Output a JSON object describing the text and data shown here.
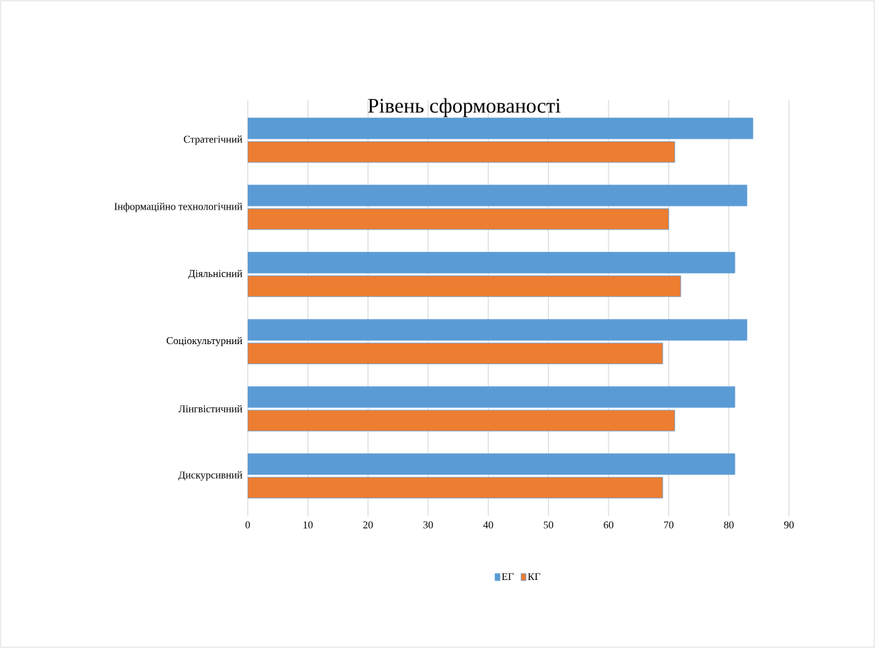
{
  "chart_data": {
    "type": "bar",
    "orientation": "horizontal",
    "title": "Рівень сформованості",
    "categories": [
      "Стратегічний",
      "Інформаційно технологічний",
      "Діяльнісний",
      "Соціокультурний",
      "Лінгвістичний",
      "Дискурсивний"
    ],
    "series": [
      {
        "name": "ЕГ",
        "color": "#5b9bd5",
        "values": [
          84,
          83,
          81,
          83,
          81,
          81
        ]
      },
      {
        "name": "КГ",
        "color": "#ed7d31",
        "values": [
          71,
          70,
          72,
          69,
          71,
          69
        ]
      }
    ],
    "xlim": [
      0,
      90
    ],
    "xticks": [
      0,
      10,
      20,
      30,
      40,
      50,
      60,
      70,
      80,
      90
    ],
    "grid": "x",
    "legend": "bottom"
  }
}
